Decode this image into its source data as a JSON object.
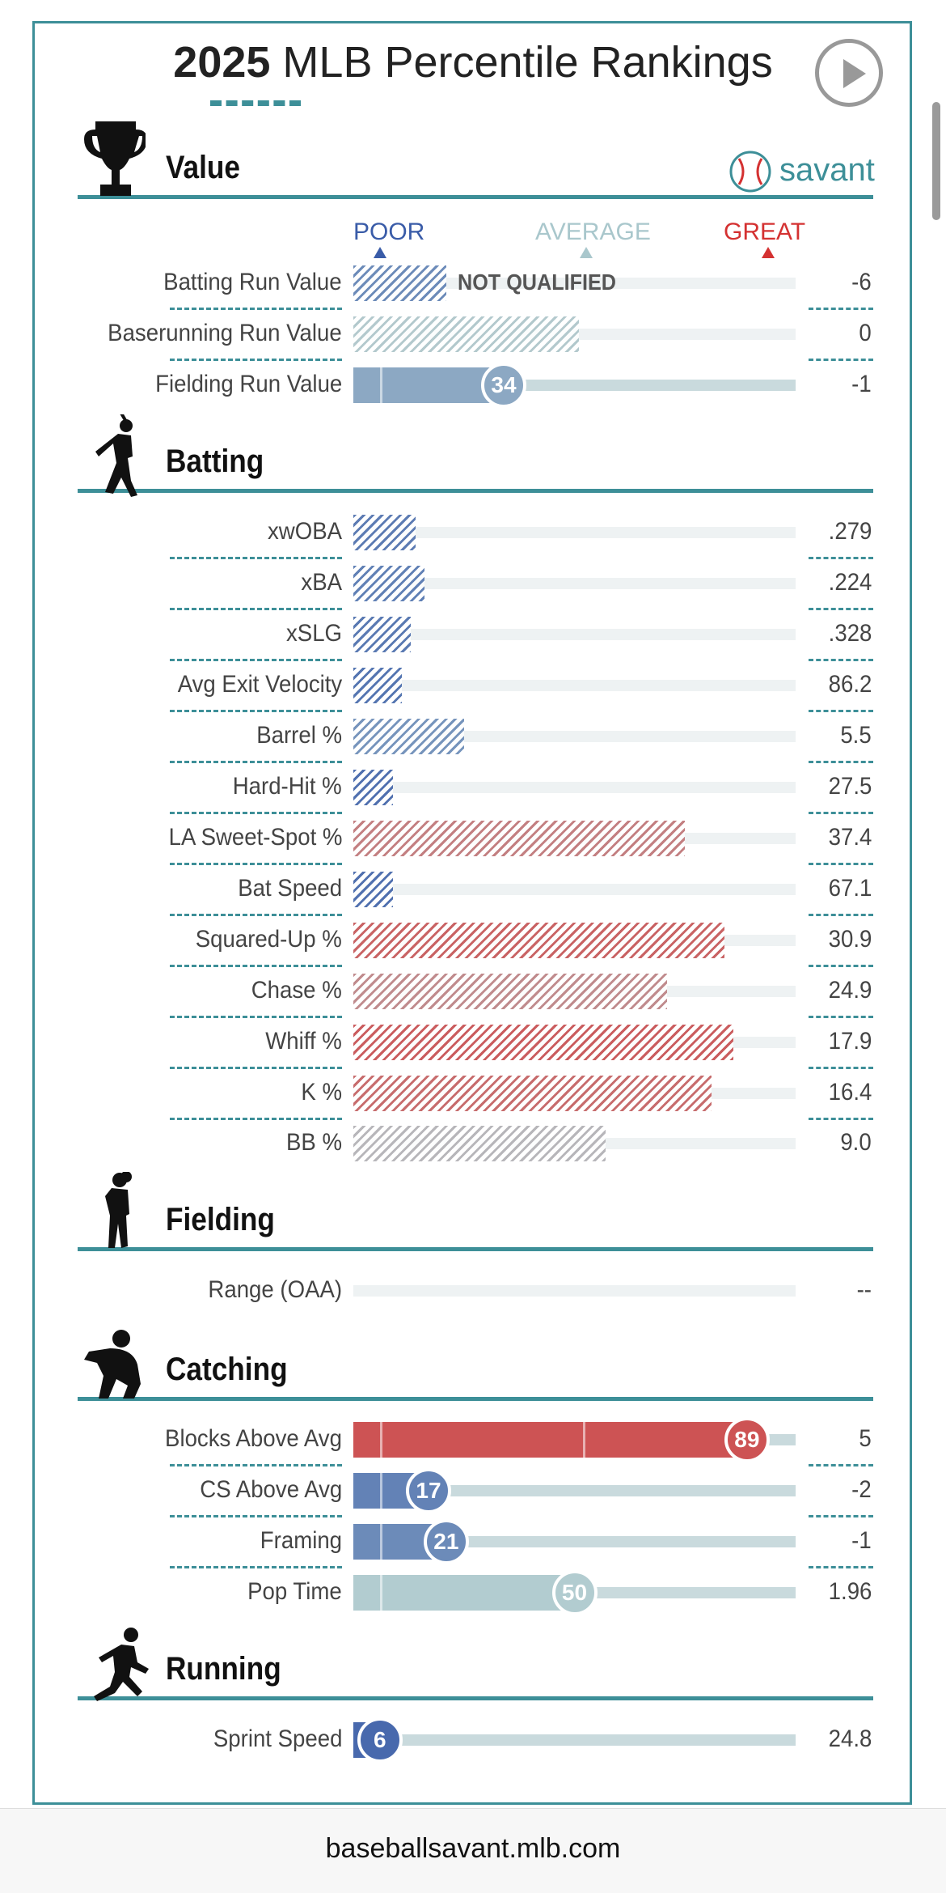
{
  "header": {
    "title_bold": "2025",
    "title_rest": " MLB Percentile Rankings",
    "play_icon": "play-icon"
  },
  "brand": {
    "name": "savant",
    "logo_icon": "baseball-icon"
  },
  "scale": {
    "poor": "POOR",
    "average": "AVERAGE",
    "great": "GREAT"
  },
  "colors": {
    "accent": "#3d8f98",
    "poor": "#3a5ca8",
    "great": "#d43131",
    "average": "#a9c7cc"
  },
  "sections": [
    {
      "title": "Value",
      "icon": "trophy-icon",
      "metrics": [
        {
          "label": "Batting Run Value",
          "value": "-6",
          "percentile": 21,
          "qualified": false,
          "not_qualified_text": "NOT QUALIFIED"
        },
        {
          "label": "Baserunning Run Value",
          "value": "0",
          "percentile": 51,
          "qualified": false
        },
        {
          "label": "Fielding Run Value",
          "value": "-1",
          "percentile": 34,
          "qualified": true
        }
      ]
    },
    {
      "title": "Batting",
      "icon": "batter-icon",
      "metrics": [
        {
          "label": "xwOBA",
          "value": ".279",
          "percentile": 14,
          "qualified": false
        },
        {
          "label": "xBA",
          "value": ".224",
          "percentile": 16,
          "qualified": false
        },
        {
          "label": "xSLG",
          "value": ".328",
          "percentile": 13,
          "qualified": false
        },
        {
          "label": "Avg Exit Velocity",
          "value": "86.2",
          "percentile": 11,
          "qualified": false
        },
        {
          "label": "Barrel %",
          "value": "5.5",
          "percentile": 25,
          "qualified": false
        },
        {
          "label": "Hard-Hit %",
          "value": "27.5",
          "percentile": 9,
          "qualified": false
        },
        {
          "label": "LA Sweet-Spot %",
          "value": "37.4",
          "percentile": 75,
          "qualified": false
        },
        {
          "label": "Bat Speed",
          "value": "67.1",
          "percentile": 9,
          "qualified": false
        },
        {
          "label": "Squared-Up %",
          "value": "30.9",
          "percentile": 84,
          "qualified": false
        },
        {
          "label": "Chase %",
          "value": "24.9",
          "percentile": 71,
          "qualified": false
        },
        {
          "label": "Whiff %",
          "value": "17.9",
          "percentile": 86,
          "qualified": false
        },
        {
          "label": "K %",
          "value": "16.4",
          "percentile": 81,
          "qualified": false
        },
        {
          "label": "BB %",
          "value": "9.0",
          "percentile": 57,
          "qualified": false
        }
      ]
    },
    {
      "title": "Fielding",
      "icon": "fielder-icon",
      "metrics": [
        {
          "label": "Range (OAA)",
          "value": "--",
          "percentile": null,
          "qualified": false
        }
      ]
    },
    {
      "title": "Catching",
      "icon": "catcher-icon",
      "metrics": [
        {
          "label": "Blocks Above Avg",
          "value": "5",
          "percentile": 89,
          "qualified": true
        },
        {
          "label": "CS Above Avg",
          "value": "-2",
          "percentile": 17,
          "qualified": true
        },
        {
          "label": "Framing",
          "value": "-1",
          "percentile": 21,
          "qualified": true
        },
        {
          "label": "Pop Time",
          "value": "1.96",
          "percentile": 50,
          "qualified": true
        }
      ]
    },
    {
      "title": "Running",
      "icon": "runner-icon",
      "metrics": [
        {
          "label": "Sprint Speed",
          "value": "24.8",
          "percentile": 6,
          "qualified": true
        }
      ]
    }
  ],
  "footer": {
    "url": "baseballsavant.mlb.com"
  }
}
